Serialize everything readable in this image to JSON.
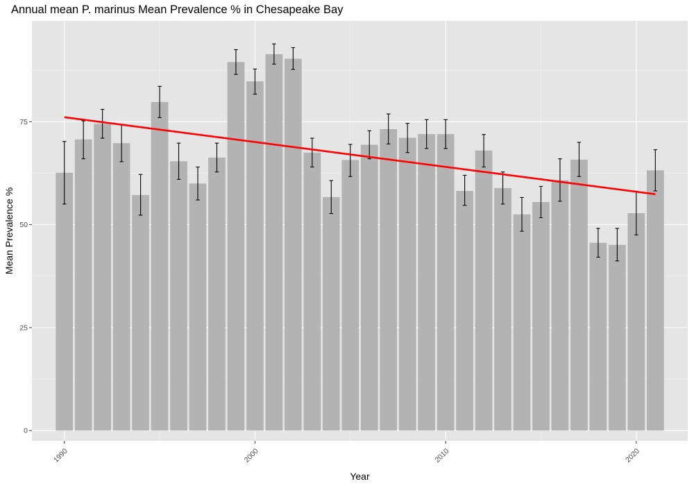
{
  "chart_data": {
    "type": "bar",
    "title": "Annual mean P. marinus Mean Prevalence % in Chesapeake Bay",
    "xlabel": "Year",
    "ylabel": "Mean Prevalence %",
    "x": [
      1990,
      1991,
      1992,
      1993,
      1994,
      1995,
      1996,
      1997,
      1998,
      1999,
      2000,
      2001,
      2002,
      2003,
      2004,
      2005,
      2006,
      2007,
      2008,
      2009,
      2010,
      2011,
      2012,
      2013,
      2014,
      2015,
      2016,
      2017,
      2018,
      2019,
      2020,
      2021
    ],
    "values": [
      62.6,
      70.7,
      74.5,
      69.8,
      57.2,
      79.8,
      65.4,
      60.0,
      66.3,
      89.5,
      84.8,
      91.4,
      90.3,
      67.5,
      56.7,
      65.7,
      69.4,
      73.2,
      71.1,
      72.0,
      72.0,
      58.2,
      68.0,
      58.9,
      52.5,
      55.5,
      60.8,
      65.8,
      45.6,
      45.1,
      52.8,
      63.2
    ],
    "error_lower": [
      55.0,
      66.0,
      71.0,
      65.3,
      52.3,
      76.0,
      61.0,
      56.0,
      62.8,
      86.5,
      81.7,
      89.0,
      87.7,
      64.0,
      52.7,
      61.7,
      66.0,
      69.6,
      67.5,
      68.5,
      68.5,
      54.7,
      64.0,
      55.0,
      48.4,
      51.7,
      55.7,
      61.7,
      42.1,
      41.2,
      47.5,
      58.2
    ],
    "error_upper": [
      70.2,
      75.2,
      78.0,
      74.3,
      62.2,
      83.6,
      69.8,
      64.0,
      69.8,
      92.5,
      87.8,
      93.9,
      93.0,
      71.0,
      60.7,
      69.5,
      72.8,
      76.9,
      74.6,
      75.5,
      75.5,
      62.0,
      71.9,
      62.8,
      56.6,
      59.3,
      66.0,
      70.0,
      49.1,
      49.1,
      58.0,
      68.2
    ],
    "trend_line": {
      "x": [
        1990,
        2021
      ],
      "y": [
        76.1,
        57.4
      ],
      "color": "#ff0000"
    },
    "bar_color": "#b3b3b3",
    "panel_color": "#e5e5e5",
    "xlim": [
      1988.3,
      2022.7
    ],
    "ylim": [
      -2.5,
      99.5
    ],
    "x_ticks": [
      1990,
      2000,
      2010,
      2020
    ],
    "y_ticks": [
      0,
      25,
      50,
      75
    ],
    "grid": true
  }
}
